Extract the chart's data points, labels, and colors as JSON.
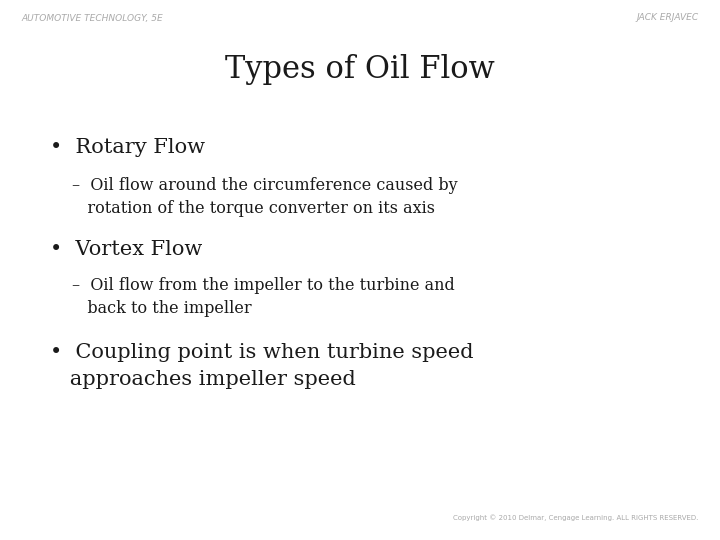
{
  "title": "Types of Oil Flow",
  "header_left": "AUTOMOTIVE TECHNOLOGY, 5E",
  "header_right": "JACK ERJAVEC",
  "footer_right": "Copyright © 2010 Delmar, Cengage Learning. ALL RIGHTS RESERVED.",
  "background_color": "#ffffff",
  "title_fontsize": 22,
  "header_fontsize": 6.5,
  "footer_fontsize": 5,
  "bullet1_heading": "•  Rotary Flow",
  "bullet1_sub_line1": "–  Oil flow around the circumference caused by",
  "bullet1_sub_line2": "   rotation of the torque converter on its axis",
  "bullet2_heading": "•  Vortex Flow",
  "bullet2_sub_line1": "–  Oil flow from the impeller to the turbine and",
  "bullet2_sub_line2": "   back to the impeller",
  "bullet3_line1": "•  Coupling point is when turbine speed",
  "bullet3_line2": "   approaches impeller speed",
  "text_color": "#1a1a1a",
  "header_color": "#aaaaaa",
  "bullet_heading_fontsize": 15,
  "bullet_sub_fontsize": 11.5,
  "bullet3_fontsize": 15
}
